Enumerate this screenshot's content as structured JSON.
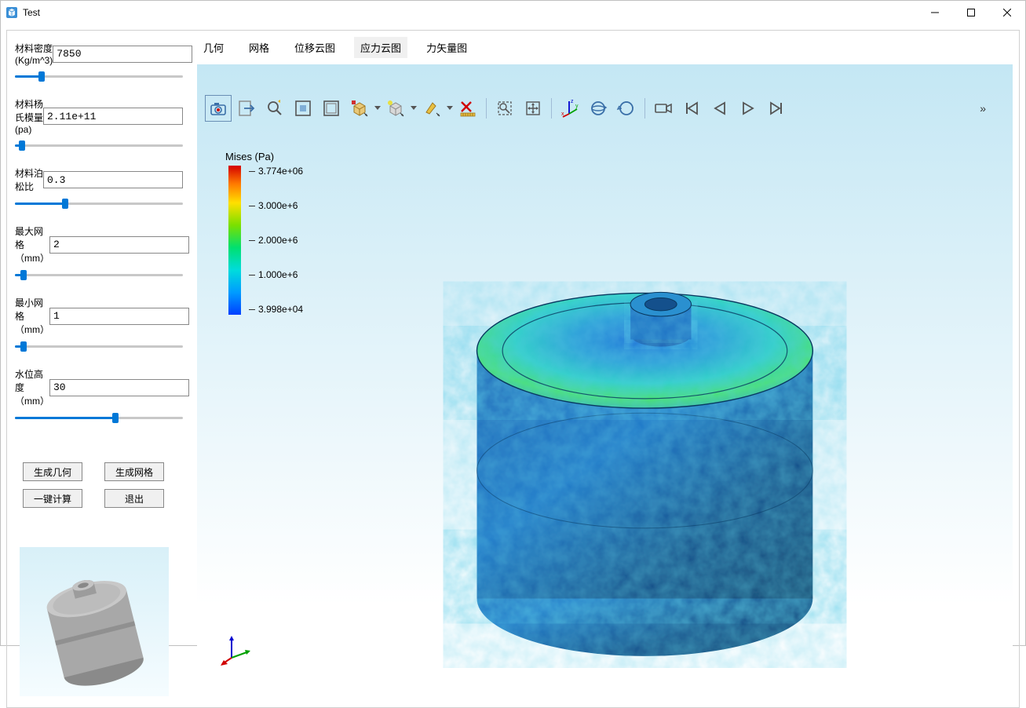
{
  "window": {
    "title": "Test"
  },
  "sidebar": {
    "params": [
      {
        "label": "材料密度(Kg/m^3)",
        "value": "7850",
        "slider_pct": 16
      },
      {
        "label": "材料杨氏模量(pa)",
        "value": "2.11e+11",
        "slider_pct": 4
      },
      {
        "label": "材料泊松比",
        "value": "0.3",
        "slider_pct": 30
      },
      {
        "label": "最大网格（mm）",
        "value": "2",
        "slider_pct": 5
      },
      {
        "label": "最小网格（mm）",
        "value": "1",
        "slider_pct": 5
      },
      {
        "label": "水位高度（mm）",
        "value": "30",
        "slider_pct": 60
      }
    ],
    "buttons": {
      "gen_geom": "生成几何",
      "gen_mesh": "生成网格",
      "compute": "一键计算",
      "exit": "退出"
    }
  },
  "tabs": [
    {
      "label": "几何",
      "active": false
    },
    {
      "label": "网格",
      "active": false
    },
    {
      "label": "位移云图",
      "active": false
    },
    {
      "label": "应力云图",
      "active": true
    },
    {
      "label": "力矢量图",
      "active": false
    }
  ],
  "legend": {
    "title": "Mises (Pa)",
    "labels": [
      "3.774e+06",
      "3.000e+6",
      "2.000e+6",
      "1.000e+6",
      "3.998e+04"
    ],
    "colors_stops": [
      "#d40000",
      "#ff7800",
      "#ffe000",
      "#7ae000",
      "#00e070",
      "#00dcdc",
      "#009cff",
      "#0040ff"
    ]
  },
  "toolbar_icons": [
    "camera-icon",
    "export-icon",
    "zoom-icon",
    "fit-window-icon",
    "fullscreen-icon",
    "cube-select-icon",
    "cube-light-icon",
    "highlight-icon",
    "measure-cancel-icon",
    "box-select-icon",
    "expand-icon",
    "axes-icon",
    "orbit-icon",
    "orbit-alt-icon",
    "video-icon",
    "skip-first-icon",
    "play-prev-icon",
    "play-next-icon",
    "skip-last-icon"
  ],
  "triad_colors": {
    "x": "#d00000",
    "y": "#00a000",
    "z": "#0000d0"
  },
  "viewport": {
    "bg_top": "#c4e7f4",
    "bg_bottom": "#ffffff",
    "model_fill_primary": "#1a5fb4",
    "model_fill_secondary": "#2ec7d8"
  }
}
